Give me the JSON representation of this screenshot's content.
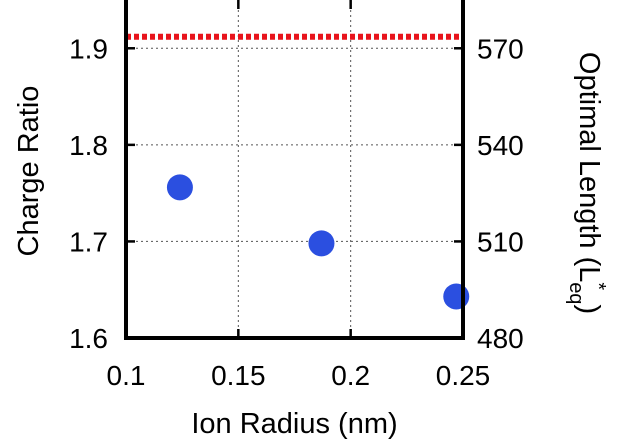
{
  "chart_data": {
    "type": "scatter",
    "xlabel": "Ion Radius (nm)",
    "ylabel": "Charge Ratio",
    "y2label_main": "Optimal Length (L",
    "y2label_sup": "*",
    "y2label_sub": "eq",
    "y2label_close": ")",
    "xlim": [
      0.1,
      0.25
    ],
    "ylim": [
      1.6,
      1.95
    ],
    "y2lim": [
      480,
      585
    ],
    "grid": true,
    "x_ticks": [
      {
        "value": 0.1,
        "label": "0.1"
      },
      {
        "value": 0.15,
        "label": "0.15"
      },
      {
        "value": 0.2,
        "label": "0.2"
      },
      {
        "value": 0.25,
        "label": "0.25"
      }
    ],
    "y_ticks": [
      {
        "value": 1.6,
        "label": "1.6"
      },
      {
        "value": 1.7,
        "label": "1.7"
      },
      {
        "value": 1.8,
        "label": "1.8"
      },
      {
        "value": 1.9,
        "label": "1.9"
      }
    ],
    "y2_ticks": [
      {
        "value": 480,
        "label": "480"
      },
      {
        "value": 510,
        "label": "510"
      },
      {
        "value": 540,
        "label": "540"
      },
      {
        "value": 570,
        "label": "570"
      }
    ],
    "series": [
      {
        "axis": "left",
        "type": "scatter",
        "color": "#2b4fe0",
        "points": [
          {
            "x": 0.124,
            "y": 1.756
          },
          {
            "x": 0.187,
            "y": 1.698
          },
          {
            "x": 0.247,
            "y": 1.643
          }
        ]
      },
      {
        "axis": "left",
        "type": "dashed-line",
        "color": "#e8141c",
        "y": 1.912
      }
    ]
  }
}
